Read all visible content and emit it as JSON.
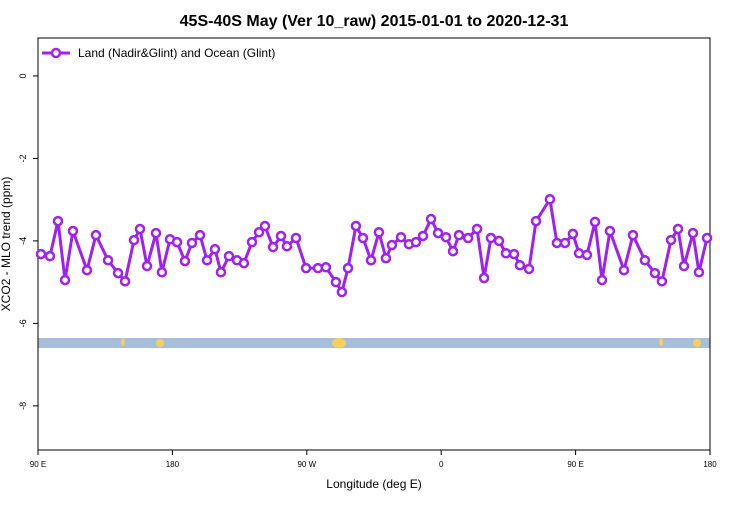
{
  "chart_data": {
    "type": "line",
    "title": "45S-40S May (Ver 10_raw)   2015-01-01 to 2020-12-31",
    "x_label": "Longitude (deg E)",
    "y_label": "XCO2 - MLO trend (ppm)",
    "xlim": [
      90,
      540
    ],
    "xticks": [
      {
        "value": 90,
        "label": "90 E"
      },
      180,
      {
        "value": 270,
        "label": "90 W"
      },
      {
        "value": 360,
        "label": "0"
      },
      {
        "value": 450,
        "label": "90 E"
      },
      {
        "value": 540,
        "label": "180"
      }
    ],
    "ylim": [
      -9.07,
      0.92
    ],
    "yticks": [
      0,
      -2,
      -4,
      -6,
      -8
    ],
    "legend": "upper left",
    "series": [
      {
        "name": "Land (Nadir&Glint) and Ocean (Glint)",
        "color": "#a020f0",
        "x": [
          92.0,
          98.0,
          103.4,
          108.1,
          113.4,
          122.8,
          128.8,
          136.9,
          143.6,
          148.3,
          154.3,
          158.3,
          163.0,
          169.0,
          173.0,
          178.4,
          183.1,
          188.4,
          193.1,
          198.5,
          203.2,
          208.5,
          212.5,
          217.9,
          223.3,
          227.9,
          233.3,
          238.0,
          242.0,
          247.4,
          252.7,
          256.7,
          262.8,
          269.5,
          277.5,
          282.8,
          289.5,
          293.5,
          297.6,
          302.9,
          307.6,
          313.0,
          318.3,
          323.0,
          327.0,
          333.1,
          338.4,
          343.1,
          347.8,
          353.2,
          357.9,
          363.2,
          367.9,
          371.9,
          378.0,
          384.0,
          388.7,
          393.3,
          398.7,
          403.4,
          408.8,
          412.7,
          418.8,
          423.5,
          432.8,
          437.5,
          442.9,
          448.2,
          452.3,
          457.6,
          463.0,
          467.7,
          473.0,
          482.4,
          488.4,
          496.4,
          503.1,
          507.8,
          513.9,
          518.6,
          522.6,
          528.6,
          532.6,
          538.0
        ],
        "values": [
          -4.32,
          -4.37,
          -3.52,
          -4.95,
          -3.76,
          -4.71,
          -3.86,
          -4.47,
          -4.78,
          -4.98,
          -3.98,
          -3.71,
          -4.61,
          -3.81,
          -4.76,
          -3.96,
          -4.03,
          -4.49,
          -4.05,
          -3.86,
          -4.47,
          -4.2,
          -4.76,
          -4.37,
          -4.47,
          -4.54,
          -4.03,
          -3.79,
          -3.64,
          -4.15,
          -3.88,
          -4.13,
          -3.93,
          -4.66,
          -4.66,
          -4.64,
          -5.0,
          -5.24,
          -4.66,
          -3.64,
          -3.93,
          -4.47,
          -3.79,
          -4.42,
          -4.1,
          -3.91,
          -4.08,
          -4.03,
          -3.88,
          -3.47,
          -3.81,
          -3.91,
          -4.25,
          -3.86,
          -3.93,
          -3.71,
          -4.9,
          -3.93,
          -4.0,
          -4.3,
          -4.32,
          -4.59,
          -4.68,
          -3.52,
          -2.99,
          -4.05,
          -4.05,
          -3.83,
          -4.3,
          -4.34,
          -3.54,
          -4.95,
          -3.76,
          -4.71,
          -3.86,
          -4.47,
          -4.78,
          -4.98,
          -3.98,
          -3.71,
          -4.61,
          -3.81,
          -4.76,
          -3.93
        ]
      }
    ]
  }
}
